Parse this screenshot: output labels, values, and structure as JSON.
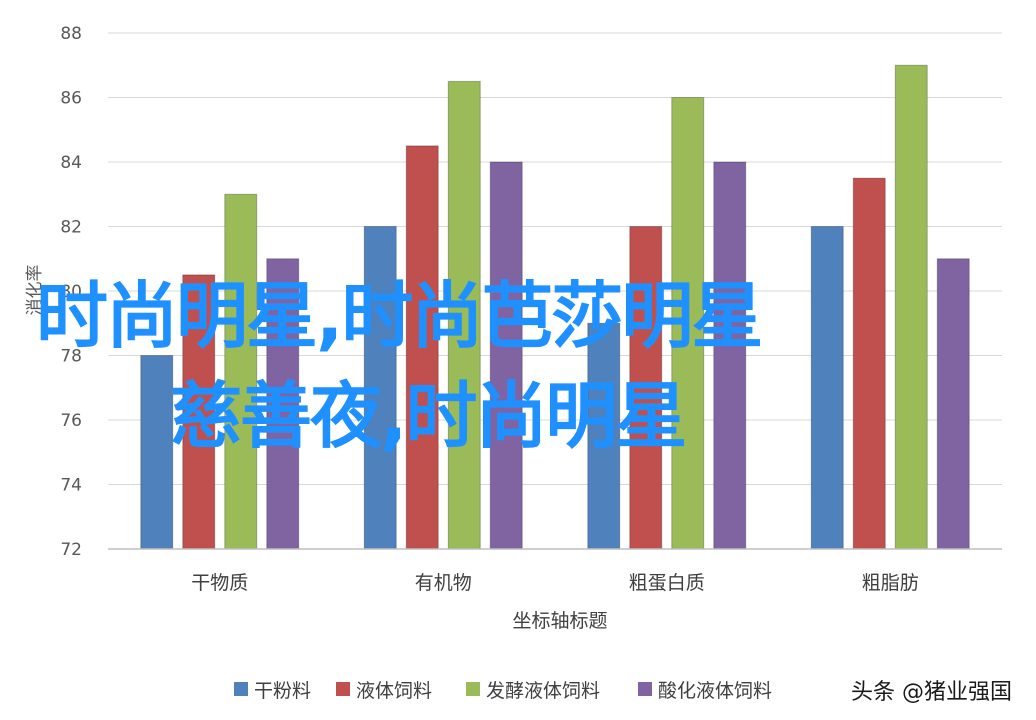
{
  "chart_data": {
    "type": "bar",
    "categories": [
      "干物质",
      "有机物",
      "粗蛋白质",
      "粗脂肪"
    ],
    "series": [
      {
        "name": "干粉料",
        "color": "#4f81bd",
        "values": [
          78,
          82,
          79,
          82
        ]
      },
      {
        "name": "液体饲料",
        "color": "#c0504d",
        "values": [
          80.5,
          84.5,
          82,
          83.5
        ]
      },
      {
        "name": "发酵液体饲料",
        "color": "#9bbb59",
        "values": [
          83,
          86.5,
          86,
          87
        ]
      },
      {
        "name": "酸化液体饲料",
        "color": "#8064a2",
        "values": [
          81,
          84,
          84,
          81
        ]
      }
    ],
    "xlabel": "坐标轴标题",
    "ylabel": "消化率",
    "ylim": [
      72,
      88
    ],
    "yticks": [
      "72",
      "74",
      "76",
      "78",
      "80",
      "82",
      "84",
      "86",
      "88"
    ],
    "grid": true,
    "legend": "bottom"
  },
  "overlay_text": {
    "line1": "时尚明星,时尚芭莎明星",
    "line2": "慈善夜,时尚明星"
  },
  "watermark": "头条 @猪业强国"
}
